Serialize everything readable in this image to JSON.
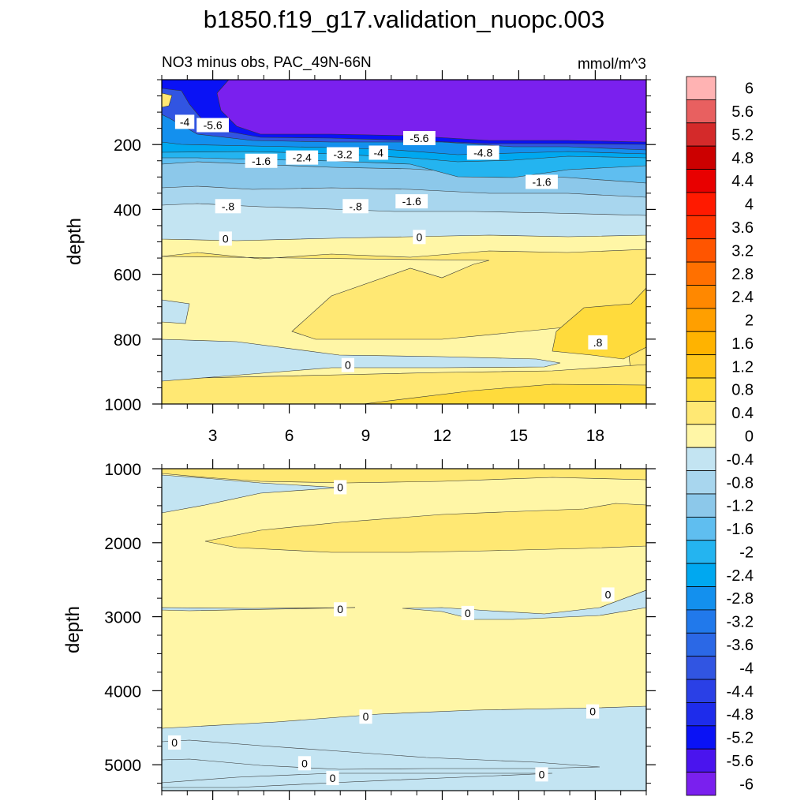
{
  "title": "b1850.f19_g17.validation_nuopc.003",
  "subtitle_left": "NO3 minus obs, PAC_49N-66N",
  "subtitle_right": "mmol/m^3",
  "chart_data": [
    {
      "type": "contour",
      "panel": "upper",
      "ylabel": "depth",
      "ylim": [
        1000,
        0
      ],
      "xlim": [
        1,
        20
      ],
      "x_ticks": [
        3,
        6,
        9,
        12,
        15,
        18
      ],
      "x_tick_labels": [
        "3",
        "6",
        "9",
        "12",
        "15",
        "18"
      ],
      "y_ticks": [
        200,
        400,
        600,
        800,
        1000
      ],
      "y_tick_labels": [
        "200",
        "400",
        "600",
        "800",
        "1000"
      ],
      "contour_labels": [
        {
          "text": "-4",
          "x": 1.9,
          "depth": 130
        },
        {
          "text": "-5.6",
          "x": 3.0,
          "depth": 140
        },
        {
          "text": "-5.6",
          "x": 11.1,
          "depth": 180
        },
        {
          "text": "-4",
          "x": 9.5,
          "depth": 225
        },
        {
          "text": "-4.8",
          "x": 13.6,
          "depth": 225
        },
        {
          "text": "-3.2",
          "x": 8.1,
          "depth": 230
        },
        {
          "text": "-2.4",
          "x": 6.5,
          "depth": 240
        },
        {
          "text": "-1.6",
          "x": 4.9,
          "depth": 250
        },
        {
          "text": "-1.6",
          "x": 15.9,
          "depth": 315
        },
        {
          "text": "-1.6",
          "x": 10.8,
          "depth": 375
        },
        {
          "text": "-.8",
          "x": 3.6,
          "depth": 390
        },
        {
          "text": "-.8",
          "x": 8.6,
          "depth": 390
        },
        {
          "text": "0",
          "x": 3.5,
          "depth": 490
        },
        {
          "text": "0",
          "x": 11.1,
          "depth": 485
        },
        {
          "text": ".8",
          "x": 18.1,
          "depth": 810
        },
        {
          "text": "0",
          "x": 8.3,
          "depth": 880
        }
      ]
    },
    {
      "type": "contour",
      "panel": "lower",
      "ylabel": "depth",
      "ylim": [
        5350,
        1000
      ],
      "xlim": [
        1,
        20
      ],
      "x_ticks": [
        3,
        6,
        9,
        12,
        15,
        18
      ],
      "y_ticks": [
        1000,
        2000,
        3000,
        4000,
        5000
      ],
      "y_tick_labels": [
        "1000",
        "2000",
        "3000",
        "4000",
        "5000"
      ],
      "contour_labels": [
        {
          "text": "0",
          "x": 8.0,
          "depth": 1250
        },
        {
          "text": "0",
          "x": 18.5,
          "depth": 2700
        },
        {
          "text": "0",
          "x": 8.0,
          "depth": 2900
        },
        {
          "text": "0",
          "x": 13.0,
          "depth": 2950
        },
        {
          "text": "0",
          "x": 9.0,
          "depth": 4350
        },
        {
          "text": "0",
          "x": 17.9,
          "depth": 4280
        },
        {
          "text": "0",
          "x": 1.5,
          "depth": 4700
        },
        {
          "text": "0",
          "x": 6.6,
          "depth": 4980
        },
        {
          "text": "0",
          "x": 7.7,
          "depth": 5180
        },
        {
          "text": "0",
          "x": 15.9,
          "depth": 5130
        }
      ]
    }
  ],
  "colorbar": {
    "labels": [
      "6",
      "5.6",
      "5.2",
      "4.8",
      "4.4",
      "4",
      "3.6",
      "3.2",
      "2.8",
      "2.4",
      "2",
      "1.6",
      "1.2",
      "0.8",
      "0.4",
      "0",
      "-0.4",
      "-0.8",
      "-1.2",
      "-1.6",
      "-2",
      "-2.4",
      "-2.8",
      "-3.2",
      "-3.6",
      "-4",
      "-4.4",
      "-4.8",
      "-5.2",
      "-5.6",
      "-6"
    ],
    "colors": [
      "#FFB3B3",
      "#E86060",
      "#D42A2A",
      "#CC0000",
      "#E80000",
      "#FF1A00",
      "#FF3300",
      "#FF5500",
      "#FF7000",
      "#FF8800",
      "#FF9F00",
      "#FFB300",
      "#FFC61A",
      "#FFDB3C",
      "#FFE873",
      "#FFF6A6",
      "#C3E4F2",
      "#A8D6EE",
      "#8CC8EA",
      "#5FBEF0",
      "#24B4F0",
      "#00A8F0",
      "#1390EE",
      "#2179EB",
      "#2B68E6",
      "#3155E2",
      "#2A40E6",
      "#1E2CEB",
      "#0A12F5",
      "#4A14EE",
      "#7A20EE"
    ]
  },
  "fill_colors": {
    "bg_pos": "#FFF6A6",
    "pos1": "#FFE873",
    "pos2": "#FFDB3C",
    "neg1": "#C3E4F2",
    "neg2": "#A8D6EE",
    "neg3": "#8CC8EA",
    "neg4": "#5FBEF0",
    "neg5": "#24B4F0",
    "neg6": "#00A8F0",
    "neg7": "#1390EE",
    "neg8": "#3155E2",
    "neg9": "#0A12F5",
    "neg10": "#7A20EE"
  }
}
